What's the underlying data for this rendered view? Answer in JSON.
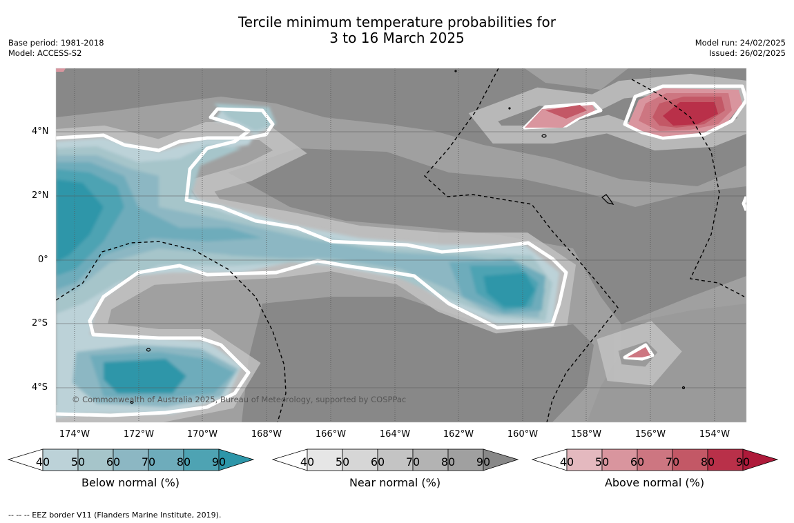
{
  "header": {
    "title_line1": "Tercile minimum temperature probabilities for",
    "title_line2": "3 to 16 March 2025",
    "base_period": "Base period: 1981-2018",
    "model": "Model: ACCESS-S2",
    "model_run": "Model run: 24/02/2025",
    "issued": "Issued: 26/02/2025"
  },
  "map": {
    "lat_labels": [
      "4°N",
      "2°N",
      "0°",
      "2°S",
      "4°S"
    ],
    "lon_labels": [
      "174°W",
      "172°W",
      "170°W",
      "168°W",
      "166°W",
      "164°W",
      "162°W",
      "160°W",
      "158°W",
      "156°W",
      "154°W"
    ],
    "copyright": "© Commonwealth of Australia 2025, Bureau of Meteorology, supported by COSPPac",
    "categories": {
      "below": "Below normal",
      "near": "Near normal",
      "above": "Above normal"
    }
  },
  "legend": {
    "ticks": [
      "40",
      "50",
      "60",
      "70",
      "80",
      "90"
    ],
    "below_label": "Below normal (%)",
    "near_label": "Near normal (%)",
    "above_label": "Above normal (%)",
    "below_colors": [
      "#bcd2d8",
      "#a6c5ca",
      "#8cb7c3",
      "#6eacbb",
      "#4ea3b3",
      "#2d96a9"
    ],
    "near_colors": [
      "#e6e6e6",
      "#d6d6d6",
      "#c4c4c4",
      "#b3b3b3",
      "#a0a0a0",
      "#888888"
    ],
    "above_colors": [
      "#e4b9bf",
      "#d9959e",
      "#cd7681",
      "#c35866",
      "#b93049",
      "#ae1a3a"
    ]
  },
  "footer": {
    "eez_note": "--  --  -- EEZ border V11 (Flanders Marine Institute, 2019)."
  }
}
